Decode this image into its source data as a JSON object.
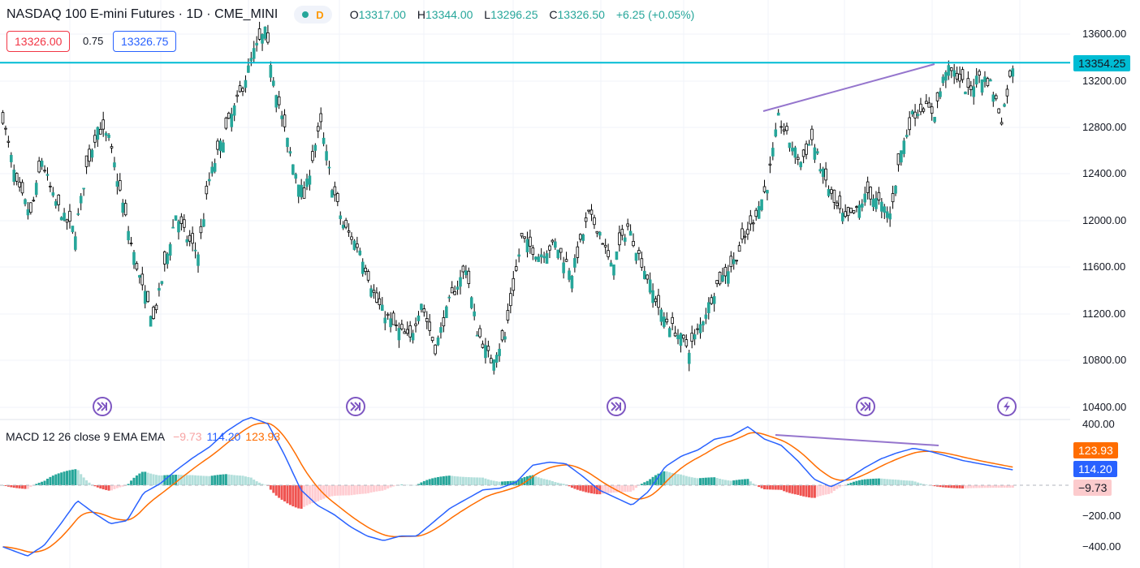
{
  "header": {
    "symbol": "NASDAQ 100 E-mini Futures · 1D · CME_MINI",
    "interval_badge": "D",
    "open_key": "O",
    "open": "13317.00",
    "high_key": "H",
    "high": "13344.00",
    "low_key": "L",
    "low": "13296.25",
    "close_key": "C",
    "close": "13326.50",
    "change": "+6.25 (+0.05%)"
  },
  "trade": {
    "sell": "13326.00",
    "spread": "0.75",
    "buy": "13326.75"
  },
  "price_axis": [
    "13600.00",
    "13200.00",
    "12800.00",
    "12400.00",
    "12000.00",
    "11600.00",
    "11200.00",
    "10800.00",
    "10400.00"
  ],
  "last_price_tag": "13354.25",
  "macd": {
    "label": "MACD 12 26 close 9 EMA EMA",
    "hist_value": "−9.73",
    "macd_value": "114.20",
    "signal_value": "123.93",
    "axis": [
      "400.00",
      "−200.00",
      "−400.00"
    ],
    "tags": {
      "signal": "123.93",
      "macd": "114.20",
      "hist": "−9.73"
    }
  },
  "colors": {
    "up": "#26a69a",
    "down": "#000000",
    "hline": "#00bcd4",
    "trendline": "#9575cd",
    "macd": "#2962ff",
    "signal": "#ff6d00",
    "hist_pos": "#26a69a",
    "hist_neg": "#ef5350"
  },
  "icons": [
    "fast-forward-circle-icon",
    "fast-forward-circle-icon",
    "fast-forward-circle-icon",
    "fast-forward-circle-icon",
    "lightning-circle-icon"
  ],
  "chart_data": {
    "type": "candlestick",
    "price_anchors": [
      [
        0,
        12880
      ],
      [
        5,
        12300
      ],
      [
        10,
        12050
      ],
      [
        14,
        12520
      ],
      [
        18,
        12200
      ],
      [
        22,
        12020
      ],
      [
        26,
        11900
      ],
      [
        30,
        12450
      ],
      [
        34,
        12800
      ],
      [
        38,
        12700
      ],
      [
        42,
        12250
      ],
      [
        46,
        11800
      ],
      [
        50,
        11420
      ],
      [
        54,
        11150
      ],
      [
        58,
        11600
      ],
      [
        62,
        12050
      ],
      [
        66,
        11850
      ],
      [
        70,
        11720
      ],
      [
        74,
        12350
      ],
      [
        78,
        12650
      ],
      [
        82,
        12900
      ],
      [
        86,
        13150
      ],
      [
        90,
        13450
      ],
      [
        94,
        13620
      ],
      [
        97,
        13230
      ],
      [
        100,
        12880
      ],
      [
        104,
        12480
      ],
      [
        108,
        12200
      ],
      [
        112,
        12650
      ],
      [
        114,
        12820
      ],
      [
        118,
        12300
      ],
      [
        122,
        11960
      ],
      [
        128,
        11750
      ],
      [
        134,
        11300
      ],
      [
        140,
        11100
      ],
      [
        146,
        10980
      ],
      [
        150,
        11300
      ],
      [
        155,
        10900
      ],
      [
        160,
        11300
      ],
      [
        166,
        11600
      ],
      [
        170,
        11050
      ],
      [
        175,
        10800
      ],
      [
        180,
        11000
      ],
      [
        186,
        11850
      ],
      [
        192,
        11700
      ],
      [
        198,
        11800
      ],
      [
        204,
        11550
      ],
      [
        210,
        12050
      ],
      [
        214,
        11900
      ],
      [
        218,
        11600
      ],
      [
        224,
        11950
      ],
      [
        230,
        11580
      ],
      [
        236,
        11200
      ],
      [
        241,
        11050
      ],
      [
        246,
        10900
      ],
      [
        250,
        11100
      ],
      [
        256,
        11450
      ],
      [
        262,
        11650
      ],
      [
        268,
        11950
      ],
      [
        274,
        12300
      ],
      [
        278,
        12880
      ],
      [
        282,
        12680
      ],
      [
        286,
        12500
      ],
      [
        290,
        12700
      ],
      [
        294,
        12400
      ],
      [
        298,
        12150
      ],
      [
        302,
        12000
      ],
      [
        306,
        12080
      ],
      [
        310,
        12240
      ],
      [
        314,
        12150
      ],
      [
        318,
        12050
      ],
      [
        322,
        12600
      ],
      [
        326,
        12900
      ],
      [
        330,
        12980
      ],
      [
        334,
        12920
      ],
      [
        338,
        13300
      ],
      [
        342,
        13250
      ],
      [
        346,
        13100
      ],
      [
        350,
        13250
      ],
      [
        354,
        13180
      ],
      [
        358,
        12870
      ],
      [
        362,
        13330
      ]
    ],
    "hline": 13354.25,
    "macd_anchors": [
      [
        0,
        -400
      ],
      [
        6,
        -460
      ],
      [
        10,
        -390
      ],
      [
        14,
        -250
      ],
      [
        18,
        -100
      ],
      [
        22,
        -180
      ],
      [
        26,
        -250
      ],
      [
        30,
        -230
      ],
      [
        34,
        -50
      ],
      [
        38,
        10
      ],
      [
        42,
        100
      ],
      [
        46,
        180
      ],
      [
        50,
        250
      ],
      [
        54,
        350
      ],
      [
        58,
        420
      ],
      [
        60,
        440
      ],
      [
        64,
        400
      ],
      [
        68,
        200
      ],
      [
        72,
        -30
      ],
      [
        76,
        -130
      ],
      [
        80,
        -190
      ],
      [
        84,
        -270
      ],
      [
        88,
        -330
      ],
      [
        92,
        -360
      ],
      [
        96,
        -330
      ],
      [
        100,
        -330
      ],
      [
        104,
        -240
      ],
      [
        108,
        -150
      ],
      [
        112,
        -90
      ],
      [
        116,
        -30
      ],
      [
        120,
        -20
      ],
      [
        124,
        20
      ],
      [
        128,
        130
      ],
      [
        132,
        150
      ],
      [
        136,
        140
      ],
      [
        140,
        60
      ],
      [
        144,
        -30
      ],
      [
        148,
        -80
      ],
      [
        152,
        -130
      ],
      [
        156,
        -40
      ],
      [
        160,
        120
      ],
      [
        164,
        190
      ],
      [
        168,
        230
      ],
      [
        172,
        300
      ],
      [
        176,
        320
      ],
      [
        180,
        380
      ],
      [
        184,
        300
      ],
      [
        188,
        260
      ],
      [
        192,
        160
      ],
      [
        196,
        40
      ],
      [
        200,
        -10
      ],
      [
        204,
        40
      ],
      [
        208,
        110
      ],
      [
        212,
        170
      ],
      [
        216,
        210
      ],
      [
        220,
        240
      ],
      [
        224,
        220
      ],
      [
        228,
        190
      ],
      [
        232,
        160
      ],
      [
        236,
        140
      ],
      [
        240,
        120
      ],
      [
        244,
        100
      ]
    ]
  }
}
